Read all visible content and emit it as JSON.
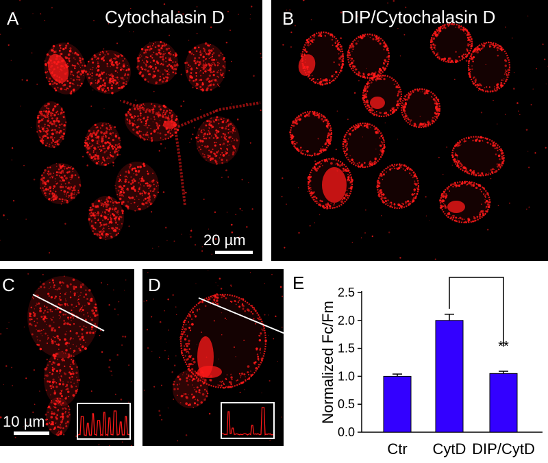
{
  "figure": {
    "panels": [
      {
        "id": "A",
        "label": "A",
        "title": "Cytochalasin D",
        "scale_label": "20 µm"
      },
      {
        "id": "B",
        "label": "B",
        "title": "DIP/Cytochalasin D"
      },
      {
        "id": "C",
        "label": "C",
        "scale_label": "10 µm"
      },
      {
        "id": "D",
        "label": "D"
      },
      {
        "id": "E",
        "label": "E"
      }
    ],
    "colors": {
      "stain": "#ff1a1a",
      "bar": "#3300ff",
      "background": "#000000"
    }
  },
  "chart_data": {
    "type": "bar",
    "categories": [
      "Ctr",
      "CytD",
      "DIP/CytD"
    ],
    "values": [
      1.0,
      2.0,
      1.05
    ],
    "errors": [
      0.04,
      0.11,
      0.04
    ],
    "ylabel": "Normalized Fc/Fm",
    "ylim": [
      0,
      2.5
    ],
    "yticks": [
      "0.0",
      "0.5",
      "1.0",
      "1.5",
      "2.0",
      "2.5"
    ],
    "significance": {
      "from": "CytD",
      "to": "DIP/CytD",
      "label": "**"
    },
    "bar_color": "#3300ff"
  }
}
